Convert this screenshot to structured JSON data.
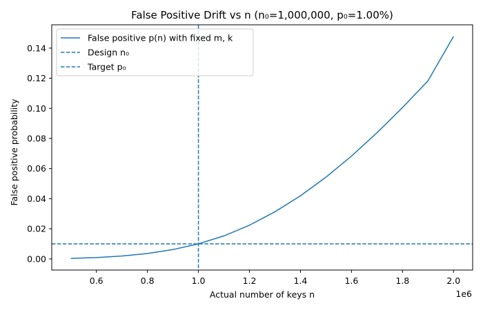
{
  "chart_data": {
    "type": "line",
    "title": "False Positive Drift vs n (n₀=1,000,000, p₀=1.00%)",
    "xlabel": "Actual number of keys n",
    "ylabel": "False positive probability",
    "x_offset_label": "1e6",
    "xlim": [
      0.425,
      2.075
    ],
    "ylim": [
      -0.0074,
      0.1555
    ],
    "x_ticks": [
      0.6,
      0.8,
      1.0,
      1.2,
      1.4,
      1.6,
      1.8,
      2.0
    ],
    "x_tick_labels": [
      "0.6",
      "0.8",
      "1.0",
      "1.2",
      "1.4",
      "1.6",
      "1.8",
      "2.0"
    ],
    "y_ticks": [
      0.0,
      0.02,
      0.04,
      0.06,
      0.08,
      0.1,
      0.12,
      0.14
    ],
    "y_tick_labels": [
      "0.00",
      "0.02",
      "0.04",
      "0.06",
      "0.08",
      "0.10",
      "0.12",
      "0.14"
    ],
    "grid": false,
    "legend_position": "upper-left",
    "series": [
      {
        "name": "False positive p(n) with fixed m, k",
        "style": "solid",
        "color": "#1f77b4",
        "x": [
          0.5,
          0.6,
          0.7,
          0.8,
          0.9,
          1.0,
          1.1,
          1.2,
          1.3,
          1.4,
          1.5,
          1.6,
          1.7,
          1.8,
          1.9,
          2.0
        ],
        "y": [
          0.0003,
          0.0009,
          0.0019,
          0.0036,
          0.0062,
          0.01,
          0.0153,
          0.0224,
          0.0313,
          0.0419,
          0.0543,
          0.0683,
          0.0838,
          0.1005,
          0.1183,
          0.1478
        ]
      },
      {
        "name": "Design n₀",
        "style": "dashed",
        "orientation": "vertical",
        "color": "#1f77b4",
        "x": 1.0
      },
      {
        "name": "Target p₀",
        "style": "dashed",
        "orientation": "horizontal",
        "color": "#1f77b4",
        "y": 0.01
      }
    ]
  }
}
